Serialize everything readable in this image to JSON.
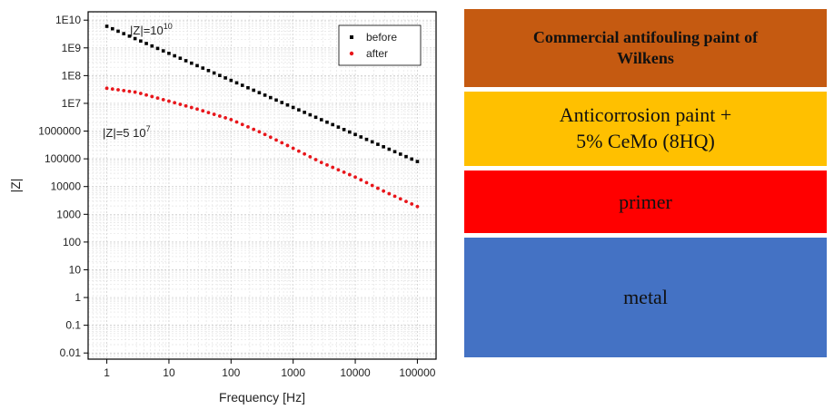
{
  "chart_data": {
    "type": "scatter",
    "x_scale": "log",
    "y_scale": "log",
    "xlabel": "Frequency [Hz]",
    "ylabel": "|Z|",
    "xlim": [
      0.5,
      200000
    ],
    "ylim": [
      0.006,
      20000000000
    ],
    "grid": true,
    "legend_position": "top-right",
    "x_ticks": [
      {
        "value": 1,
        "label": "1"
      },
      {
        "value": 10,
        "label": "10"
      },
      {
        "value": 100,
        "label": "100"
      },
      {
        "value": 1000,
        "label": "1000"
      },
      {
        "value": 10000,
        "label": "10000"
      },
      {
        "value": 100000,
        "label": "100000"
      }
    ],
    "y_ticks": [
      {
        "value": 0.01,
        "label": "0.01"
      },
      {
        "value": 0.1,
        "label": "0.1"
      },
      {
        "value": 1,
        "label": "1"
      },
      {
        "value": 10,
        "label": "10"
      },
      {
        "value": 100,
        "label": "100"
      },
      {
        "value": 1000,
        "label": "1000"
      },
      {
        "value": 10000,
        "label": "10000"
      },
      {
        "value": 100000,
        "label": "100000"
      },
      {
        "value": 1000000,
        "label": "1000000"
      },
      {
        "value": 10000000,
        "label": "1E7"
      },
      {
        "value": 100000000,
        "label": "1E8"
      },
      {
        "value": 1000000000,
        "label": "1E9"
      },
      {
        "value": 10000000000,
        "label": "1E10"
      }
    ],
    "series": [
      {
        "name": "before",
        "color": "#000000",
        "marker": "square",
        "points": [
          [
            1,
            6000000000.0
          ],
          [
            100000,
            80000.0
          ]
        ]
      },
      {
        "name": "after",
        "color": "#e8161b",
        "marker": "circle",
        "points": [
          [
            1,
            35000000.0
          ],
          [
            3,
            25000000.0
          ],
          [
            10,
            12000000.0
          ],
          [
            30,
            6000000.0
          ],
          [
            100,
            2600000.0
          ],
          [
            300,
            900000.0
          ],
          [
            1000,
            240000.0
          ],
          [
            3000,
            70000.0
          ],
          [
            10000,
            22000.0
          ],
          [
            30000,
            6500.0
          ],
          [
            100000,
            1900.0
          ]
        ]
      }
    ],
    "annotations": [
      {
        "text": "|Z|=10",
        "sup": "10"
      },
      {
        "text": "|Z|=5 10",
        "sup": "7"
      }
    ]
  },
  "layers": [
    {
      "label": "Commercial  antifouling paint of\nWilkens",
      "color": "#c55a11"
    },
    {
      "label": "Anticorrosion paint +\n5% CeMo (8HQ)",
      "color": "#ffc000"
    },
    {
      "label": "primer",
      "color": "#ff0000"
    },
    {
      "label": "metal",
      "color": "#4472c4"
    }
  ]
}
